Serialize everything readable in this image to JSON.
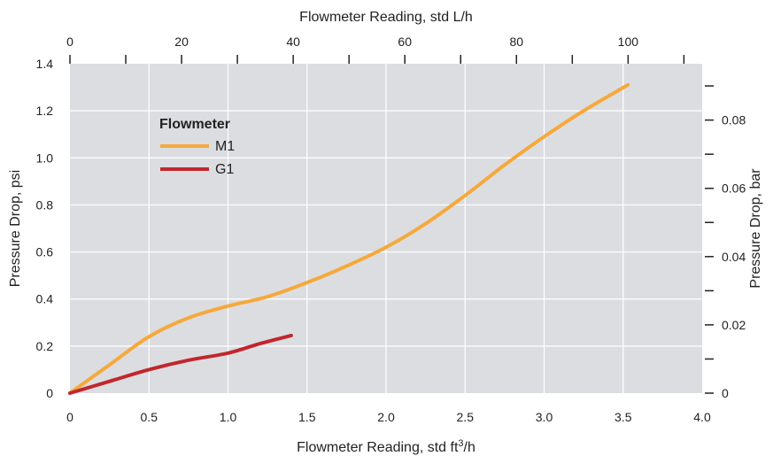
{
  "chart_data": {
    "type": "line",
    "x_bottom": {
      "label_main": "Flowmeter Reading, std ft",
      "label_sup": "3",
      "label_tail": "/h",
      "range": [
        0,
        4.0
      ],
      "ticks": [
        0,
        0.5,
        1.0,
        1.5,
        2.0,
        2.5,
        3.0,
        3.5,
        4.0
      ],
      "tick_labels": [
        "0",
        "0.5",
        "1.0",
        "1.5",
        "2.0",
        "2.5",
        "3.0",
        "3.5",
        "4.0"
      ]
    },
    "x_top": {
      "label": "Flowmeter Reading, std L/h",
      "range": [
        0,
        113.27
      ],
      "ticks": [
        0,
        20,
        40,
        60,
        80,
        100
      ],
      "tick_labels": [
        "0",
        "20",
        "40",
        "60",
        "80",
        "100"
      ],
      "minor_ticks": [
        10,
        30,
        50,
        70,
        90,
        110
      ]
    },
    "y_left": {
      "label": "Pressure Drop, psi",
      "range": [
        0,
        1.4
      ],
      "ticks": [
        0,
        0.2,
        0.4,
        0.6,
        0.8,
        1.0,
        1.2,
        1.4
      ],
      "tick_labels": [
        "0",
        "0.2",
        "0.4",
        "0.6",
        "0.8",
        "1.0",
        "1.2",
        "1.4"
      ]
    },
    "y_right": {
      "label": "Pressure Drop, bar",
      "range": [
        0,
        0.0965
      ],
      "ticks": [
        0,
        0.02,
        0.04,
        0.06,
        0.08
      ],
      "tick_labels": [
        "0",
        "0.02",
        "0.04",
        "0.06",
        "0.08"
      ],
      "minor_ticks": [
        0.01,
        0.03,
        0.05,
        0.07,
        0.09
      ]
    },
    "grid": true,
    "legend": {
      "title": "Flowmeter",
      "placement": "upper-left"
    },
    "series": [
      {
        "name": "M1",
        "color": "#f5a93b",
        "x": [
          0,
          0.25,
          0.5,
          0.75,
          1.0,
          1.25,
          1.5,
          1.75,
          2.0,
          2.25,
          2.5,
          2.75,
          3.0,
          3.25,
          3.53
        ],
        "y": [
          0,
          0.12,
          0.24,
          0.32,
          0.37,
          0.41,
          0.47,
          0.54,
          0.62,
          0.72,
          0.84,
          0.97,
          1.09,
          1.2,
          1.31
        ]
      },
      {
        "name": "G1",
        "color": "#c1272d",
        "x": [
          0,
          0.25,
          0.5,
          0.75,
          1.0,
          1.2,
          1.4
        ],
        "y": [
          0,
          0.05,
          0.1,
          0.14,
          0.17,
          0.21,
          0.245
        ]
      }
    ]
  }
}
